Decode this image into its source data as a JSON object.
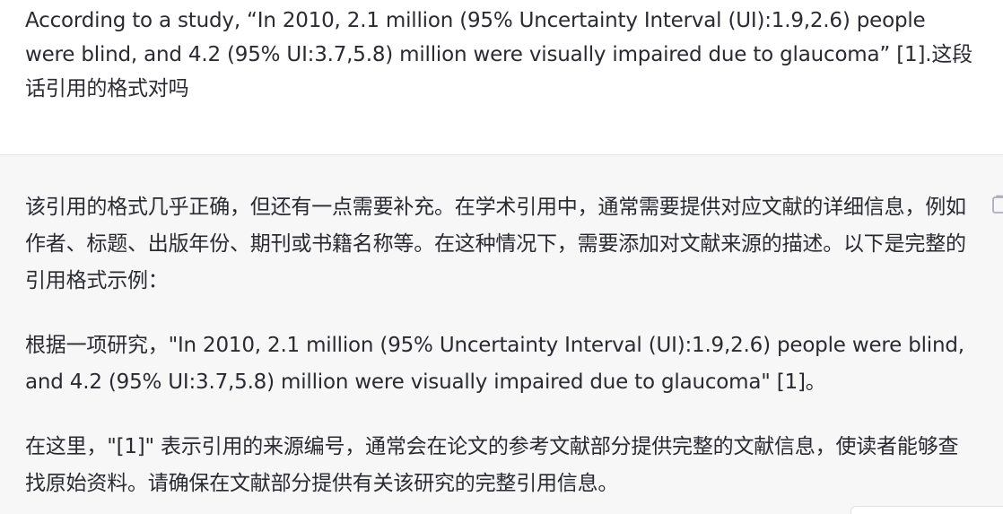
{
  "conversation": {
    "user_message": {
      "text": "According to a study, “In 2010, 2.1 million (95% Uncertainty Interval (UI):1.9,2.6) people were blind, and 4.2 (95% UI:3.7,5.8) million were visually impaired due to glaucoma” [1].这段话引用的格式对吗"
    },
    "assistant_message": {
      "paragraphs": [
        "该引用的格式几乎正确，但还有一点需要补充。在学术引用中，通常需要提供对应文献的详细信息，例如作者、标题、出版年份、期刊或书籍名称等。在这种情况下，需要添加对文献来源的描述。以下是完整的引用格式示例：",
        "根据一项研究，\"In 2010, 2.1 million (95% Uncertainty Interval (UI):1.9,2.6) people were blind, and 4.2 (95% UI:3.7,5.8) million were visually impaired due to glaucoma\" [1]。",
        "在这里，\"[1]\" 表示引用的来源编号，通常会在论文的参考文献部分提供完整的文献信息，使读者能够查找原始资料。请确保在文献部分提供有关该研究的完整引用信息。"
      ],
      "copy_icon": "clipboard-icon"
    }
  },
  "colors": {
    "user_background": "#ffffff",
    "assistant_background": "#f7f7f8",
    "text": "#2a2b30",
    "divider": "#e5e5e7",
    "icon": "#acacbe"
  }
}
